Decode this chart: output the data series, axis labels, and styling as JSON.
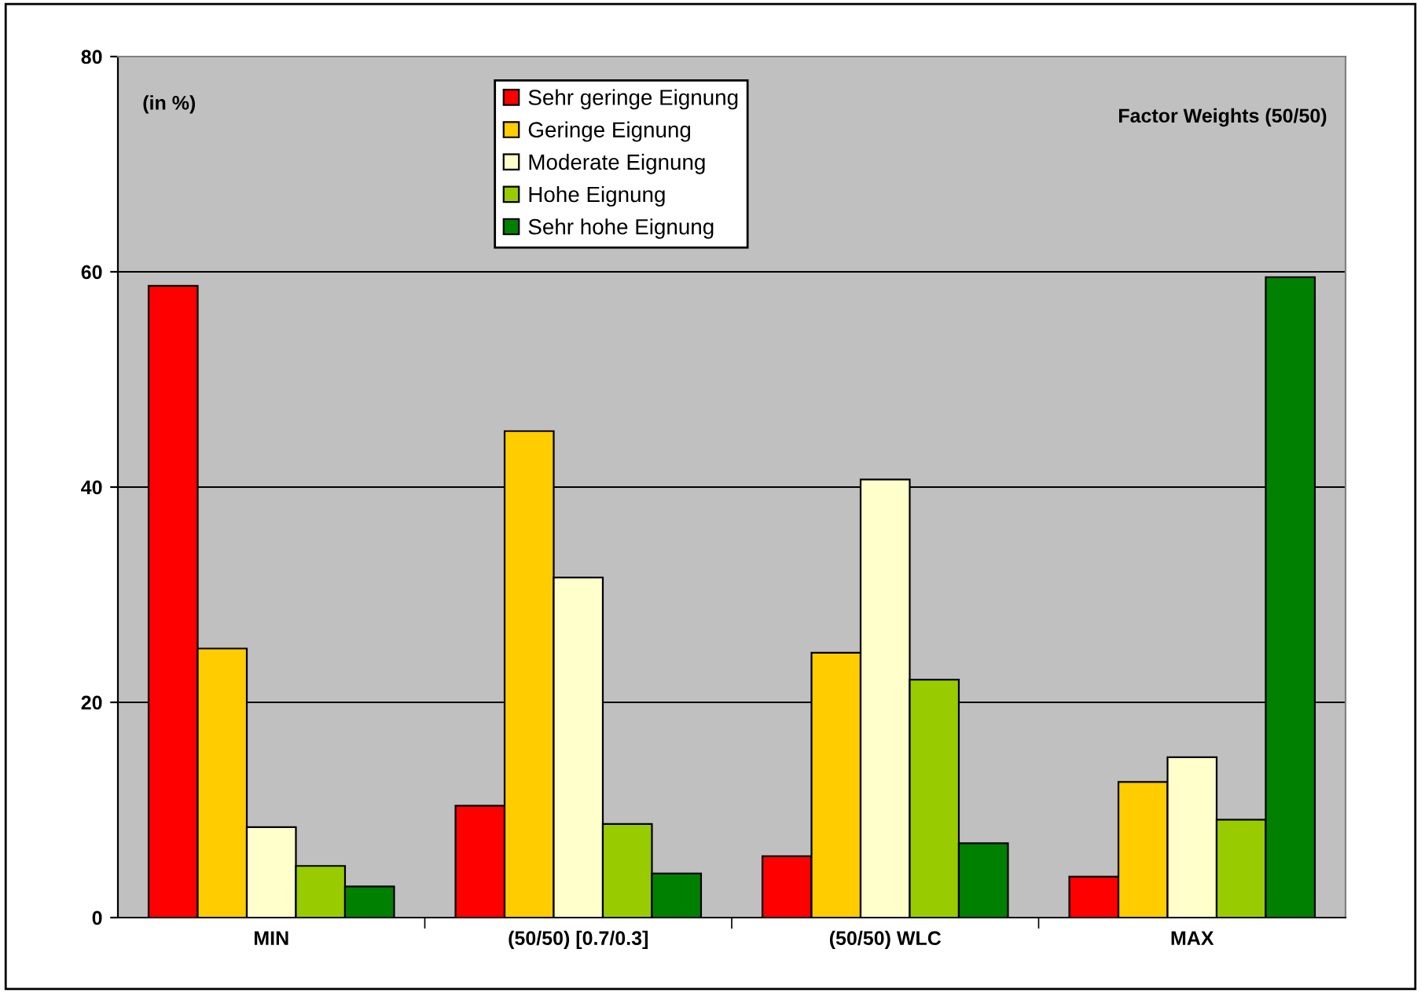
{
  "chart_data": {
    "type": "bar",
    "categories": [
      "MIN",
      "(50/50) [0.7/0.3]",
      "(50/50) WLC",
      "MAX"
    ],
    "series": [
      {
        "name": "Sehr geringe Eignung",
        "color": "#ff0000",
        "values": [
          58.7,
          10.4,
          5.7,
          3.8
        ]
      },
      {
        "name": "Geringe Eignung",
        "color": "#ffcc00",
        "values": [
          25.0,
          45.2,
          24.6,
          12.6
        ]
      },
      {
        "name": "Moderate Eignung",
        "color": "#ffffcc",
        "values": [
          8.4,
          31.6,
          40.7,
          14.9
        ]
      },
      {
        "name": "Hohe Eignung",
        "color": "#99cc00",
        "values": [
          4.8,
          8.7,
          22.1,
          9.1
        ]
      },
      {
        "name": "Sehr hohe Eignung",
        "color": "#008000",
        "values": [
          2.9,
          4.1,
          6.9,
          59.5
        ]
      }
    ],
    "ylim": [
      0,
      80
    ],
    "yticks": [
      0,
      20,
      40,
      60,
      80
    ],
    "grid": "y",
    "legend": "top",
    "annotations": [
      "(in %)",
      "Factor Weights (50/50)"
    ]
  }
}
